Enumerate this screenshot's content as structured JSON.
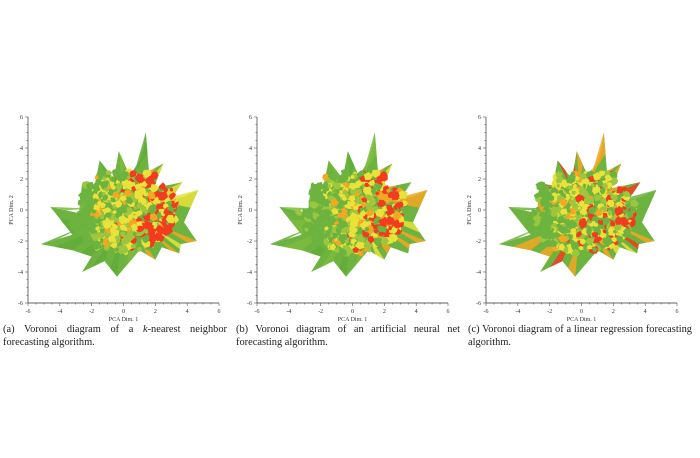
{
  "chart_data": [
    {
      "type": "voronoi",
      "panel": "a",
      "xlabel": "PCA Dim. 1",
      "ylabel": "PCA Dim. 2",
      "xlim": [
        -6,
        6
      ],
      "ylim": [
        -6,
        6
      ],
      "xticks": [
        -6,
        -4,
        -2,
        0,
        2,
        4,
        6
      ],
      "yticks": [
        -6,
        -4,
        -2,
        0,
        2,
        4,
        6
      ],
      "colors": [
        "#6db33f",
        "#e8e23a",
        "#f5a623",
        "#f23b1f"
      ],
      "red_region": "right",
      "caption": "(a) Voronoi diagram of a k-nearest neighbor forecasting algorithm."
    },
    {
      "type": "voronoi",
      "panel": "b",
      "xlabel": "PCA Dim. 1",
      "ylabel": "PCA Dim. 2",
      "xlim": [
        -6,
        6
      ],
      "ylim": [
        -6,
        6
      ],
      "xticks": [
        -6,
        -4,
        -2,
        0,
        2,
        4,
        6
      ],
      "yticks": [
        -6,
        -4,
        -2,
        0,
        2,
        4,
        6
      ],
      "colors": [
        "#6db33f",
        "#e8e23a",
        "#f5a623",
        "#f23b1f"
      ],
      "red_region": "right",
      "caption": "(b) Voronoi diagram of an artificial neural net forecasting algorithm."
    },
    {
      "type": "voronoi",
      "panel": "c",
      "xlabel": "PCA Dim. 1",
      "ylabel": "PCA Dim. 2",
      "xlim": [
        -6,
        6
      ],
      "ylim": [
        -6,
        6
      ],
      "xticks": [
        -6,
        -4,
        -2,
        0,
        2,
        4,
        6
      ],
      "yticks": [
        -6,
        -4,
        -2,
        0,
        2,
        4,
        6
      ],
      "colors": [
        "#6db33f",
        "#e8e23a",
        "#f5a623",
        "#f23b1f"
      ],
      "red_region": "edges",
      "caption": "(c) Voronoi diagram of a linear regression forecasting algorithm."
    }
  ],
  "captions": {
    "a_prefix": "(a) Voronoi diagram of a ",
    "a_italic": "k",
    "a_suffix": "-nearest neighbor forecasting algorithm.",
    "b": "(b) Voronoi diagram of an artificial neural net forecasting algorithm.",
    "c": "(c) Voronoi diagram of a linear regression forecasting algorithm."
  }
}
